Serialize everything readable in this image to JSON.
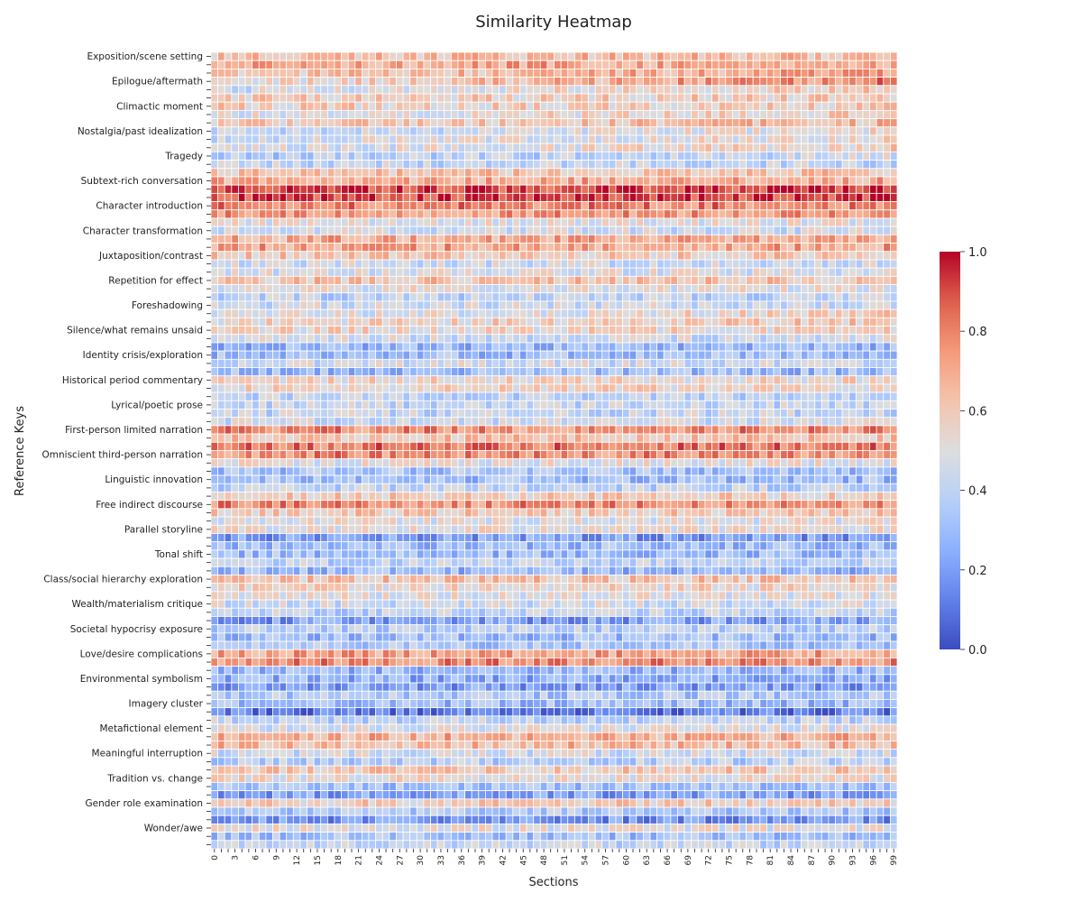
{
  "chart_data": {
    "type": "heatmap",
    "title": "Similarity Heatmap",
    "xlabel": "Sections",
    "ylabel": "Reference Keys",
    "colormap": "coolwarm",
    "vmin": 0.0,
    "vmax": 1.0,
    "colorbar_ticks": [
      "0.0",
      "0.2",
      "0.4",
      "0.6",
      "0.8",
      "1.0"
    ],
    "legend_placement": "right",
    "n_columns": 100,
    "n_rows": 96,
    "x_tick_step": 3,
    "y_tick_step": 3,
    "y_tick_labels": [
      "Exposition/scene setting",
      "Epilogue/aftermath",
      "Climactic moment",
      "Nostalgia/past idealization",
      "Tragedy",
      "Subtext-rich conversation",
      "Character introduction",
      "Character transformation",
      "Juxtaposition/contrast",
      "Repetition for effect",
      "Foreshadowing",
      "Silence/what remains unsaid",
      "Identity crisis/exploration",
      "Historical period commentary",
      "Lyrical/poetic prose",
      "First-person limited narration",
      "Omniscient third-person narration",
      "Linguistic innovation",
      "Free indirect discourse",
      "Parallel storyline",
      "Tonal shift",
      "Class/social hierarchy exploration",
      "Wealth/materialism critique",
      "Societal hypocrisy exposure",
      "Love/desire complications",
      "Environmental symbolism",
      "Imagery cluster",
      "Metafictional element",
      "Meaningful interruption",
      "Tradition vs. change",
      "Gender role examination",
      "Wonder/awe"
    ],
    "row_levels_left_right": [
      [
        0.65,
        0.64
      ],
      [
        0.72,
        0.72
      ],
      [
        0.6,
        0.72
      ],
      [
        0.5,
        0.82
      ],
      [
        0.45,
        0.62
      ],
      [
        0.58,
        0.58
      ],
      [
        0.58,
        0.58
      ],
      [
        0.48,
        0.6
      ],
      [
        0.58,
        0.65
      ],
      [
        0.4,
        0.55
      ],
      [
        0.45,
        0.55
      ],
      [
        0.45,
        0.58
      ],
      [
        0.35,
        0.45
      ],
      [
        0.42,
        0.42
      ],
      [
        0.62,
        0.62
      ],
      [
        0.7,
        0.7
      ],
      [
        0.92,
        0.92
      ],
      [
        0.92,
        0.92
      ],
      [
        0.8,
        0.8
      ],
      [
        0.75,
        0.75
      ],
      [
        0.5,
        0.5
      ],
      [
        0.45,
        0.45
      ],
      [
        0.7,
        0.7
      ],
      [
        0.72,
        0.72
      ],
      [
        0.6,
        0.6
      ],
      [
        0.45,
        0.45
      ],
      [
        0.48,
        0.48
      ],
      [
        0.62,
        0.62
      ],
      [
        0.5,
        0.5
      ],
      [
        0.4,
        0.4
      ],
      [
        0.45,
        0.45
      ],
      [
        0.45,
        0.58
      ],
      [
        0.55,
        0.6
      ],
      [
        0.55,
        0.55
      ],
      [
        0.45,
        0.45
      ],
      [
        0.28,
        0.28
      ],
      [
        0.3,
        0.3
      ],
      [
        0.45,
        0.45
      ],
      [
        0.3,
        0.3
      ],
      [
        0.55,
        0.55
      ],
      [
        0.55,
        0.55
      ],
      [
        0.4,
        0.4
      ],
      [
        0.42,
        0.42
      ],
      [
        0.42,
        0.42
      ],
      [
        0.45,
        0.45
      ],
      [
        0.78,
        0.78
      ],
      [
        0.62,
        0.62
      ],
      [
        0.82,
        0.82
      ],
      [
        0.78,
        0.78
      ],
      [
        0.5,
        0.5
      ],
      [
        0.32,
        0.32
      ],
      [
        0.3,
        0.3
      ],
      [
        0.4,
        0.4
      ],
      [
        0.58,
        0.58
      ],
      [
        0.78,
        0.78
      ],
      [
        0.6,
        0.6
      ],
      [
        0.5,
        0.5
      ],
      [
        0.52,
        0.52
      ],
      [
        0.2,
        0.2
      ],
      [
        0.3,
        0.3
      ],
      [
        0.3,
        0.3
      ],
      [
        0.4,
        0.4
      ],
      [
        0.28,
        0.28
      ],
      [
        0.62,
        0.62
      ],
      [
        0.55,
        0.55
      ],
      [
        0.5,
        0.5
      ],
      [
        0.45,
        0.45
      ],
      [
        0.4,
        0.4
      ],
      [
        0.2,
        0.2
      ],
      [
        0.38,
        0.38
      ],
      [
        0.3,
        0.3
      ],
      [
        0.33,
        0.33
      ],
      [
        0.72,
        0.72
      ],
      [
        0.78,
        0.78
      ],
      [
        0.28,
        0.28
      ],
      [
        0.25,
        0.25
      ],
      [
        0.2,
        0.2
      ],
      [
        0.35,
        0.35
      ],
      [
        0.3,
        0.3
      ],
      [
        0.1,
        0.1
      ],
      [
        0.4,
        0.4
      ],
      [
        0.48,
        0.48
      ],
      [
        0.68,
        0.68
      ],
      [
        0.65,
        0.65
      ],
      [
        0.45,
        0.45
      ],
      [
        0.38,
        0.38
      ],
      [
        0.6,
        0.6
      ],
      [
        0.52,
        0.52
      ],
      [
        0.32,
        0.32
      ],
      [
        0.22,
        0.22
      ],
      [
        0.58,
        0.58
      ],
      [
        0.35,
        0.35
      ],
      [
        0.18,
        0.18
      ],
      [
        0.5,
        0.5
      ],
      [
        0.32,
        0.32
      ],
      [
        0.42,
        0.42
      ]
    ],
    "cell_variation": 0.13
  }
}
